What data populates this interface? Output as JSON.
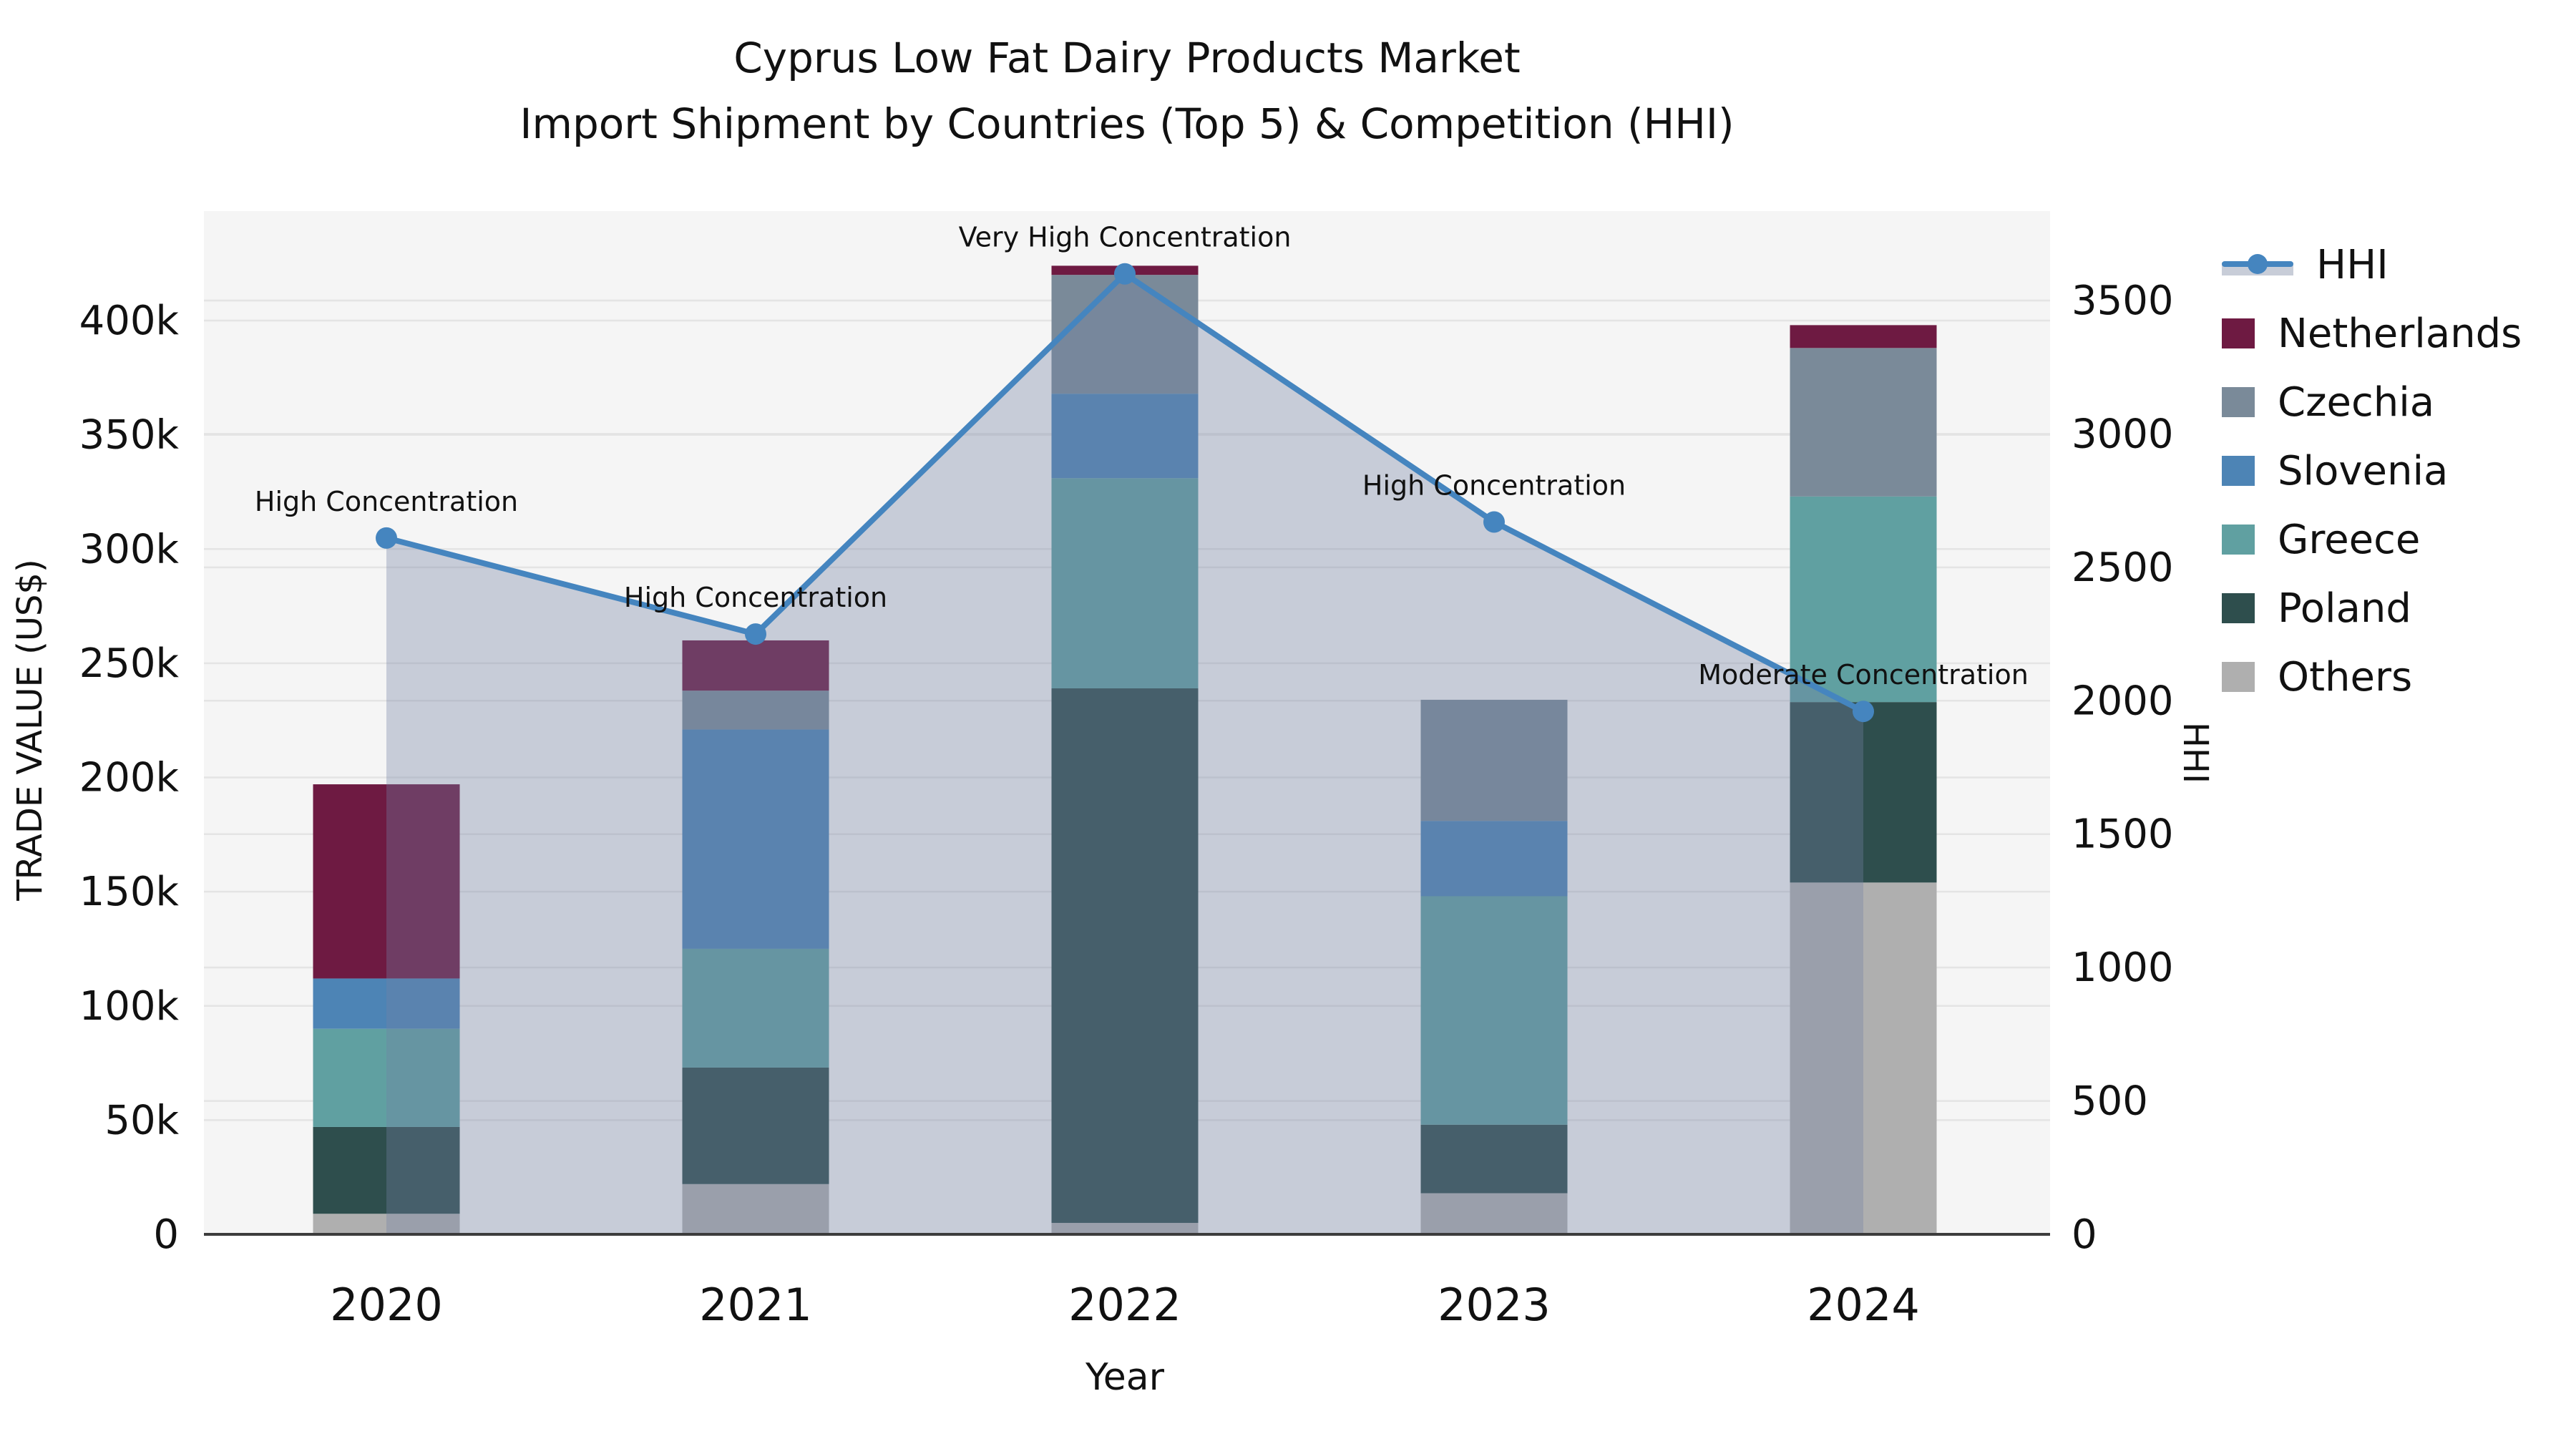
{
  "title": {
    "line1": "Cyprus Low Fat Dairy Products Market",
    "line2": "Import Shipment by Countries (Top 5) & Competition (HHI)"
  },
  "axes": {
    "left_label": "TRADE VALUE (US$)",
    "right_label": "HHI",
    "x_label": "Year",
    "left_tick_labels": [
      "0",
      "50k",
      "100k",
      "150k",
      "200k",
      "250k",
      "300k",
      "350k",
      "400k"
    ],
    "left_tick_values": [
      0,
      50000,
      100000,
      150000,
      200000,
      250000,
      300000,
      350000,
      400000
    ],
    "right_tick_labels": [
      "0",
      "500",
      "1000",
      "1500",
      "2000",
      "2500",
      "3000",
      "3500"
    ],
    "right_tick_values": [
      0,
      500,
      1000,
      1500,
      2000,
      2500,
      3000,
      3500
    ]
  },
  "chart_data": {
    "type": "bar+line",
    "title": "Cyprus Low Fat Dairy Products Market — Import Shipment by Countries (Top 5) & Competition (HHI)",
    "categories": [
      "2020",
      "2021",
      "2022",
      "2023",
      "2024"
    ],
    "xlabel": "Year",
    "ylabel_left": "TRADE VALUE (US$)",
    "ylabel_right": "HHI",
    "ylim_left": [
      0,
      400000
    ],
    "ylim_right": [
      0,
      3500
    ],
    "grid": true,
    "legend_position": "right",
    "bar_stack_order_bottom_to_top": [
      "Others",
      "Poland",
      "Greece",
      "Slovenia",
      "Czechia",
      "Netherlands"
    ],
    "series": [
      {
        "name": "Others",
        "type": "bar",
        "color": "#afafaf",
        "values": [
          9000,
          22000,
          5000,
          18000,
          154000
        ]
      },
      {
        "name": "Poland",
        "type": "bar",
        "color": "#2e4e4d",
        "values": [
          38000,
          51000,
          234000,
          30000,
          79000
        ]
      },
      {
        "name": "Greece",
        "type": "bar",
        "color": "#60a0a1",
        "values": [
          43000,
          52000,
          92000,
          100000,
          90000
        ]
      },
      {
        "name": "Slovenia",
        "type": "bar",
        "color": "#4d84b5",
        "values": [
          22000,
          96000,
          37000,
          33000,
          0
        ]
      },
      {
        "name": "Czechia",
        "type": "bar",
        "color": "#7a8a99",
        "values": [
          0,
          17000,
          52000,
          53000,
          65000
        ]
      },
      {
        "name": "Netherlands",
        "type": "bar",
        "color": "#6e1a42",
        "values": [
          85000,
          22000,
          4000,
          0,
          10000
        ]
      }
    ],
    "hhi_line": {
      "name": "HHI",
      "type": "line",
      "color": "#4585bf",
      "area_fill": "rgba(116,130,163,0.35)",
      "values": [
        2610,
        2250,
        3600,
        2670,
        1960
      ]
    },
    "annotations": [
      {
        "year": "2020",
        "label": "High Concentration"
      },
      {
        "year": "2021",
        "label": "High Concentration"
      },
      {
        "year": "2022",
        "label": "Very High Concentration"
      },
      {
        "year": "2023",
        "label": "High Concentration"
      },
      {
        "year": "2024",
        "label": "Moderate Concentration"
      }
    ]
  },
  "legend": {
    "items": [
      {
        "label": "HHI",
        "kind": "line",
        "color": "#4585bf"
      },
      {
        "label": "Netherlands",
        "kind": "swatch",
        "color": "#6e1a42"
      },
      {
        "label": "Czechia",
        "kind": "swatch",
        "color": "#7a8a99"
      },
      {
        "label": "Slovenia",
        "kind": "swatch",
        "color": "#4d84b5"
      },
      {
        "label": "Greece",
        "kind": "swatch",
        "color": "#60a0a1"
      },
      {
        "label": "Poland",
        "kind": "swatch",
        "color": "#2e4e4d"
      },
      {
        "label": "Others",
        "kind": "swatch",
        "color": "#afafaf"
      }
    ]
  },
  "style": {
    "plot_bg": "#f5f5f5",
    "gridline": "#e4e4e4",
    "axis_line": "#3c3c3c",
    "text": "#111111"
  }
}
